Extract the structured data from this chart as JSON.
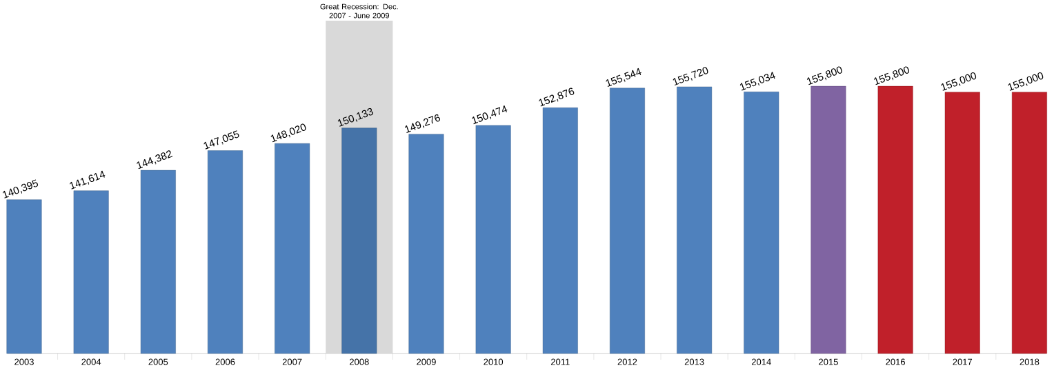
{
  "chart_data": {
    "type": "bar",
    "categories": [
      "2003",
      "2004",
      "2005",
      "2006",
      "2007",
      "2008",
      "2009",
      "2010",
      "2011",
      "2012",
      "2013",
      "2014",
      "2015",
      "2016",
      "2017",
      "2018"
    ],
    "values": [
      140395,
      141614,
      144382,
      147055,
      148020,
      150133,
      149276,
      150474,
      152876,
      155544,
      155720,
      155034,
      155800,
      155800,
      155000,
      155000
    ],
    "value_labels": [
      "140,395",
      "141,614",
      "144,382",
      "147,055",
      "148,020",
      "150,133",
      "149,276",
      "150,474",
      "152,876",
      "155,544",
      "155,720",
      "155,034",
      "155,800",
      "155,800",
      "155,000",
      "155,000"
    ],
    "colors": [
      "#4f81bd",
      "#4f81bd",
      "#4f81bd",
      "#4f81bd",
      "#4f81bd",
      "#4573a8",
      "#4f81bd",
      "#4f81bd",
      "#4f81bd",
      "#4f81bd",
      "#4f81bd",
      "#4f81bd",
      "#8064a2",
      "#c0202a",
      "#c0202a",
      "#c0202a"
    ],
    "ylim": [
      119500,
      164700
    ],
    "bands": [
      {
        "axis": "x",
        "from": "2008",
        "to": "2008",
        "label": "Great Recession: Dec. 2007 - June 2009",
        "color": "#d9d9d9"
      }
    ]
  }
}
